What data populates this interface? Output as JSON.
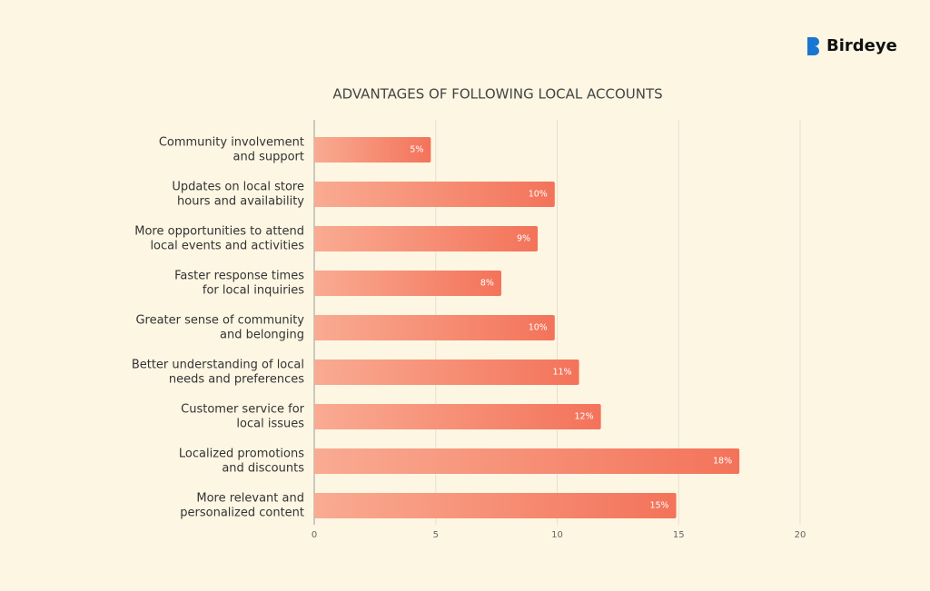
{
  "brand": "Birdeye",
  "chart_data": {
    "type": "hbar",
    "title": "ADVANTAGES OF FOLLOWING LOCAL ACCOUNTS",
    "categories": [
      [
        "Community involvement",
        "and support"
      ],
      [
        "Updates on local store",
        "hours and availability"
      ],
      [
        "More opportunities to attend",
        "local events and activities"
      ],
      [
        "Faster response times",
        "for local inquiries"
      ],
      [
        "Greater sense of community",
        "and belonging"
      ],
      [
        "Better understanding of local",
        "needs and preferences"
      ],
      [
        "Customer service for",
        "local issues"
      ],
      [
        "Localized promotions",
        "and discounts"
      ],
      [
        "More relevant and",
        "personalized content"
      ]
    ],
    "values": [
      4.8,
      9.9,
      9.2,
      7.7,
      9.9,
      10.9,
      11.8,
      17.5,
      14.9
    ],
    "value_labels": [
      "5%",
      "10%",
      "9%",
      "8%",
      "10%",
      "11%",
      "12%",
      "18%",
      "15%"
    ],
    "color": [
      "#f9ab92",
      "#f3735a"
    ],
    "xlim": [
      0,
      20
    ],
    "xticks": [
      0,
      5,
      10,
      15,
      20
    ],
    "grid": true
  }
}
